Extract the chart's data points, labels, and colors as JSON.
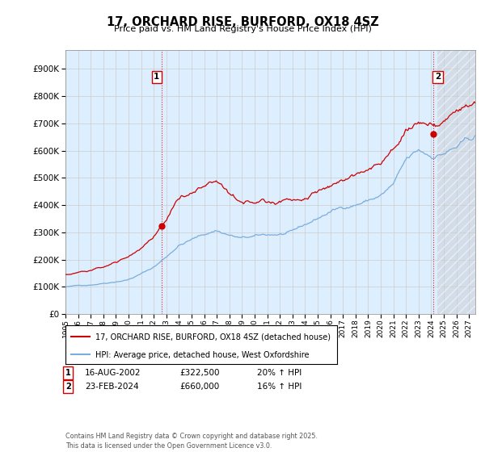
{
  "title": "17, ORCHARD RISE, BURFORD, OX18 4SZ",
  "subtitle": "Price paid vs. HM Land Registry's House Price Index (HPI)",
  "yticks": [
    0,
    100000,
    200000,
    300000,
    400000,
    500000,
    600000,
    700000,
    800000,
    900000
  ],
  "ylim": [
    0,
    970000
  ],
  "xlim_start": 1995.0,
  "xlim_end": 2027.5,
  "xticks": [
    1995,
    1996,
    1997,
    1998,
    1999,
    2000,
    2001,
    2002,
    2003,
    2004,
    2005,
    2006,
    2007,
    2008,
    2009,
    2010,
    2011,
    2012,
    2013,
    2014,
    2015,
    2016,
    2017,
    2018,
    2019,
    2020,
    2021,
    2022,
    2023,
    2024,
    2025,
    2026,
    2027
  ],
  "red_line_color": "#cc0000",
  "blue_line_color": "#7aaddc",
  "vline1_x": 2002.62,
  "vline2_x": 2024.15,
  "marker1_x": 2002.62,
  "marker1_y": 322500,
  "marker2_x": 2024.15,
  "marker2_y": 660000,
  "label1": "1",
  "label2": "2",
  "legend_red": "17, ORCHARD RISE, BURFORD, OX18 4SZ (detached house)",
  "legend_blue": "HPI: Average price, detached house, West Oxfordshire",
  "annotation1_date": "16-AUG-2002",
  "annotation1_price": "£322,500",
  "annotation1_hpi": "20% ↑ HPI",
  "annotation2_date": "23-FEB-2024",
  "annotation2_price": "£660,000",
  "annotation2_hpi": "16% ↑ HPI",
  "footer": "Contains HM Land Registry data © Crown copyright and database right 2025.\nThis data is licensed under the Open Government Licence v3.0.",
  "background_color": "#ffffff",
  "grid_color": "#cccccc",
  "plot_bg_color": "#ddeeff"
}
